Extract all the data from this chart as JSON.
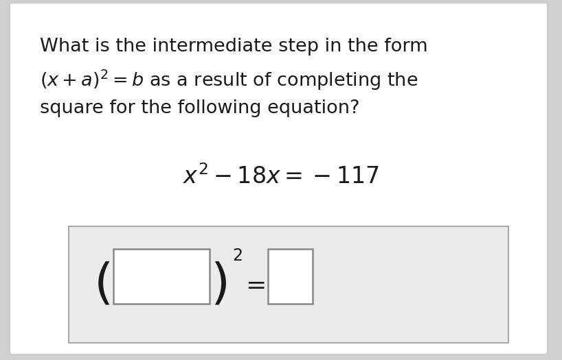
{
  "bg_color": "#d0d0d0",
  "white_bg": "#ffffff",
  "gray_box_bg": "#ebebeb",
  "answer_box_bg": "#ffffff",
  "card_border_color": "#cccccc",
  "box_border_color": "#999999",
  "fig_width": 8.18,
  "fig_height": 5.25,
  "dpi": 100,
  "text_color": "#1a1a1a",
  "q_line1": "What is the intermediate step in the form",
  "q_line2_plain": " as a result of completing the",
  "q_line3": "square for the following equation?"
}
